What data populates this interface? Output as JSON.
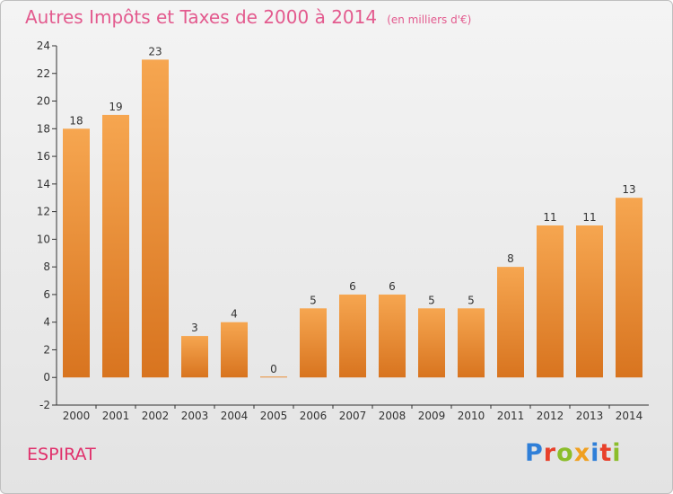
{
  "header": {
    "title": "Autres Impôts et Taxes de 2000 à 2014",
    "subtitle": "(en milliers d'€)"
  },
  "footer": {
    "commune": "ESPIRAT",
    "brand_letters": [
      "P",
      "r",
      "o",
      "x",
      "i",
      "t",
      "i"
    ],
    "brand_colors": [
      "#2f7fd8",
      "#e8402a",
      "#8bbd2a",
      "#f0a020",
      "#2f7fd8",
      "#e8402a",
      "#8bbd2a"
    ]
  },
  "chart_data": {
    "type": "bar",
    "categories": [
      "2000",
      "2001",
      "2002",
      "2003",
      "2004",
      "2005",
      "2006",
      "2007",
      "2008",
      "2009",
      "2010",
      "2011",
      "2012",
      "2013",
      "2014"
    ],
    "values": [
      18,
      19,
      23,
      3,
      4,
      0,
      5,
      6,
      6,
      5,
      5,
      8,
      11,
      11,
      13
    ],
    "value_labels": [
      "18",
      "19",
      "23",
      "3",
      "4",
      "0",
      "5",
      "6",
      "6",
      "5",
      "5",
      "8",
      "11",
      "11",
      "13"
    ],
    "ylim": [
      -2,
      24
    ],
    "yticks": [
      -2,
      0,
      2,
      4,
      6,
      8,
      10,
      12,
      14,
      16,
      18,
      20,
      22,
      24
    ],
    "ytick_labels": [
      "-2",
      "0",
      "2",
      "4",
      "6",
      "8",
      "10",
      "12",
      "14",
      "16",
      "18",
      "20",
      "22",
      "24"
    ],
    "grid": false,
    "bar_color_top": "#f6a650",
    "bar_color_bottom": "#d8741f"
  }
}
